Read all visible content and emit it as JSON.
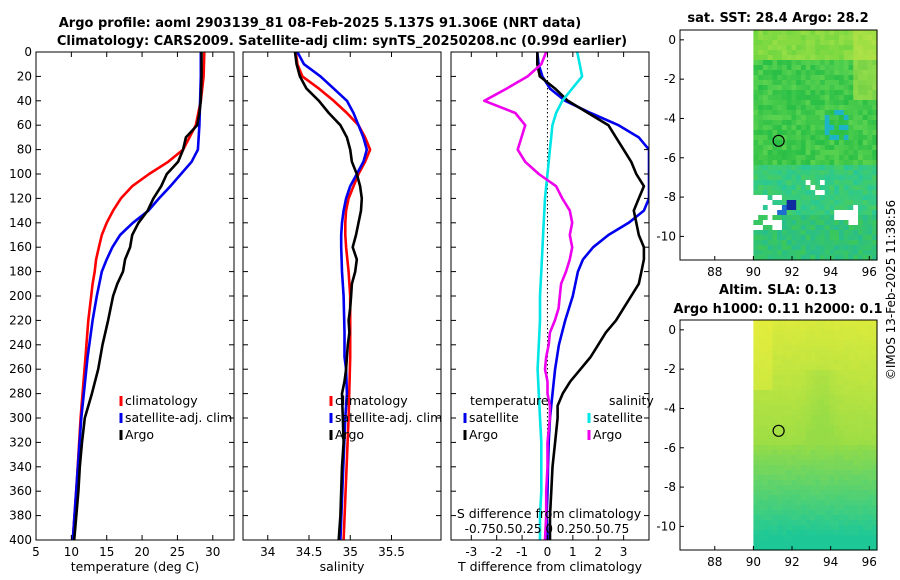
{
  "title": {
    "line1": "Argo profile: aoml 2903139_81 08-Feb-2025 5.137S 91.306E (NRT data)",
    "line2": "Climatology: CARS2009. Satellite-adj clim: synTS_20250208.nc (0.99d earlier)"
  },
  "colors": {
    "climatology": "#ff0000",
    "satellite": "#0000ee",
    "argo": "#000000",
    "s_satellite": "#00e5e5",
    "s_argo": "#ee00ee"
  },
  "chart_data": [
    {
      "type": "line",
      "name": "temperature-profile",
      "xlabel": "temperature (deg C)",
      "xlim": [
        5,
        33
      ],
      "xticks": [
        5,
        10,
        15,
        20,
        25,
        30
      ],
      "ylim": [
        0,
        400
      ],
      "yticks": [
        0,
        20,
        40,
        60,
        80,
        100,
        120,
        140,
        160,
        180,
        200,
        220,
        240,
        260,
        280,
        300,
        320,
        340,
        360,
        380,
        400
      ],
      "legend": [
        "climatology",
        "satellite-adj. clim",
        "Argo"
      ],
      "series": [
        {
          "name": "climatology",
          "color": "#ff0000",
          "depth": [
            0,
            20,
            40,
            60,
            80,
            90,
            100,
            110,
            120,
            130,
            140,
            150,
            160,
            170,
            180,
            190,
            200,
            220,
            250,
            300,
            350,
            400
          ],
          "values": [
            28.8,
            28.7,
            28.3,
            27.6,
            25.8,
            23.7,
            21.0,
            18.6,
            17.0,
            15.9,
            15.0,
            14.3,
            13.9,
            13.5,
            13.3,
            13.0,
            12.8,
            12.4,
            12.0,
            11.3,
            10.8,
            10.2
          ]
        },
        {
          "name": "satellite-adj. clim",
          "color": "#0000ee",
          "depth": [
            0,
            20,
            40,
            60,
            80,
            90,
            100,
            110,
            120,
            130,
            140,
            150,
            160,
            170,
            180,
            200,
            220,
            250,
            300,
            350,
            400
          ],
          "values": [
            28.3,
            28.3,
            28.2,
            28.1,
            27.9,
            27.0,
            25.5,
            24.0,
            22.4,
            20.9,
            18.7,
            16.9,
            15.8,
            15.0,
            14.3,
            13.6,
            13.0,
            12.3,
            11.4,
            10.8,
            10.2
          ]
        },
        {
          "name": "Argo",
          "color": "#000000",
          "depth": [
            0,
            20,
            40,
            50,
            60,
            70,
            80,
            90,
            95,
            100,
            110,
            120,
            130,
            140,
            150,
            160,
            170,
            180,
            190,
            200,
            220,
            240,
            260,
            280,
            300,
            320,
            340,
            360,
            380,
            400
          ],
          "values": [
            28.4,
            28.4,
            28.3,
            28.1,
            27.8,
            26.2,
            25.8,
            25.1,
            24.3,
            23.5,
            22.7,
            21.6,
            20.8,
            19.5,
            18.6,
            18.3,
            17.6,
            17.3,
            16.5,
            15.9,
            15.2,
            14.4,
            13.8,
            12.9,
            11.9,
            11.5,
            11.2,
            11.0,
            10.7,
            10.4
          ]
        }
      ]
    },
    {
      "type": "line",
      "name": "salinity-profile",
      "xlabel": "salinity",
      "xlim": [
        33.7,
        36.1
      ],
      "xticks": [
        34,
        34.5,
        35,
        35.5
      ],
      "xtick_labels": [
        "34",
        "34.5",
        "35",
        "35.5"
      ],
      "ylim": [
        0,
        400
      ],
      "legend": [
        "climatology",
        "satellite-adj. clim",
        "Argo"
      ],
      "series": [
        {
          "name": "climatology",
          "color": "#ff0000",
          "depth": [
            0,
            10,
            20,
            30,
            40,
            50,
            60,
            70,
            80,
            90,
            100,
            110,
            120,
            130,
            140,
            150,
            160,
            180,
            200,
            250,
            300,
            350,
            400
          ],
          "values": [
            34.34,
            34.36,
            34.42,
            34.62,
            34.8,
            34.96,
            35.1,
            35.18,
            35.24,
            35.18,
            35.1,
            35.04,
            34.98,
            34.95,
            34.94,
            34.94,
            34.95,
            34.98,
            35.0,
            35.0,
            34.98,
            34.95,
            34.92
          ]
        },
        {
          "name": "satellite-adj. clim",
          "color": "#0000ee",
          "depth": [
            0,
            10,
            20,
            30,
            40,
            50,
            60,
            70,
            80,
            90,
            100,
            110,
            120,
            130,
            140,
            150,
            160,
            180,
            200,
            230,
            250,
            260,
            280,
            300,
            350,
            400
          ],
          "values": [
            34.36,
            34.44,
            34.64,
            34.8,
            34.96,
            35.04,
            35.1,
            35.16,
            35.2,
            35.16,
            35.08,
            35.0,
            34.95,
            34.92,
            34.9,
            34.89,
            34.89,
            34.9,
            34.92,
            34.93,
            34.93,
            34.95,
            34.96,
            34.94,
            34.91,
            34.88
          ]
        },
        {
          "name": "Argo",
          "color": "#000000",
          "depth": [
            0,
            10,
            20,
            30,
            40,
            50,
            60,
            70,
            80,
            90,
            100,
            110,
            120,
            130,
            140,
            150,
            160,
            170,
            180,
            190,
            200,
            210,
            220,
            230,
            240,
            250,
            260,
            270,
            280,
            300,
            320,
            340,
            360,
            380,
            400
          ],
          "values": [
            34.33,
            34.35,
            34.39,
            34.47,
            34.62,
            34.74,
            34.88,
            34.96,
            35.0,
            35.02,
            35.08,
            35.12,
            35.14,
            35.13,
            35.1,
            35.07,
            35.03,
            35.08,
            35.06,
            35.02,
            35.01,
            35.0,
            34.98,
            34.99,
            34.97,
            34.96,
            34.95,
            34.93,
            34.9,
            34.91,
            34.92,
            34.9,
            34.89,
            34.88,
            34.86
          ]
        }
      ]
    },
    {
      "type": "line",
      "name": "difference-profile",
      "xlabel": "T difference from climatology",
      "xlim": [
        -3.8,
        4.0
      ],
      "xticks": [
        -3,
        -2,
        -1,
        0,
        1,
        2,
        3
      ],
      "top_label": "S difference from climatology",
      "top_ticks": "-0.750.50.25  0  0.250.50.75",
      "ylim": [
        0,
        400
      ],
      "legend_left_title": "temperature",
      "legend_right_title": "salinity",
      "legend_left": [
        "satellite",
        "Argo"
      ],
      "legend_right": [
        "satellite",
        "Argo"
      ],
      "zero_line": "dotted",
      "series": [
        {
          "name": "T satellite",
          "color": "#0000ee",
          "depth": [
            0,
            10,
            20,
            30,
            40,
            50,
            60,
            70,
            80,
            90,
            100,
            110,
            120,
            130,
            140,
            150,
            160,
            170,
            180,
            200,
            220,
            240,
            260,
            280,
            300,
            320,
            340,
            360,
            380,
            400
          ],
          "values": [
            -0.4,
            -0.35,
            -0.2,
            0.1,
            0.7,
            1.7,
            2.8,
            3.6,
            4.0,
            4.0,
            4.0,
            4.0,
            4.0,
            3.8,
            3.2,
            2.4,
            1.8,
            1.4,
            1.2,
            1.0,
            0.7,
            0.45,
            0.3,
            0.2,
            0.1,
            0.05,
            0.02,
            0.0,
            -0.03,
            0.0
          ]
        },
        {
          "name": "T Argo",
          "color": "#000000",
          "depth": [
            0,
            10,
            20,
            30,
            40,
            50,
            60,
            70,
            80,
            90,
            100,
            110,
            120,
            130,
            140,
            150,
            160,
            170,
            180,
            190,
            200,
            210,
            220,
            230,
            240,
            250,
            260,
            270,
            280,
            290,
            300,
            320,
            340,
            360,
            380,
            400
          ],
          "values": [
            -0.4,
            -0.4,
            -0.3,
            0.3,
            0.8,
            1.6,
            2.4,
            2.7,
            3.0,
            3.3,
            3.5,
            3.8,
            3.6,
            3.4,
            3.5,
            3.6,
            3.8,
            3.8,
            3.7,
            3.6,
            3.3,
            3.0,
            2.7,
            2.3,
            2.0,
            1.7,
            1.3,
            0.9,
            0.6,
            0.4,
            0.4,
            0.3,
            0.2,
            0.15,
            0.1,
            0.1
          ]
        },
        {
          "name": "S satellite",
          "color": "#00e5e5",
          "depth": [
            0,
            10,
            20,
            30,
            40,
            50,
            60,
            70,
            80,
            90,
            100,
            110,
            120,
            140,
            160,
            180,
            200,
            220,
            240,
            260,
            280,
            300,
            320,
            340,
            360,
            380,
            400
          ],
          "values": [
            0.24,
            0.26,
            0.28,
            0.2,
            0.12,
            0.07,
            0.04,
            0.03,
            0.02,
            0.01,
            0.0,
            -0.01,
            -0.02,
            -0.03,
            -0.04,
            -0.05,
            -0.06,
            -0.06,
            -0.07,
            -0.08,
            -0.07,
            -0.06,
            -0.05,
            -0.05,
            -0.05,
            -0.06,
            -0.06
          ]
        },
        {
          "name": "S Argo",
          "color": "#ee00ee",
          "depth": [
            0,
            10,
            20,
            30,
            40,
            50,
            60,
            70,
            80,
            90,
            100,
            110,
            120,
            130,
            140,
            150,
            160,
            170,
            180,
            190,
            200,
            210,
            220,
            230,
            240,
            250,
            260,
            270,
            280,
            290,
            300,
            320,
            340,
            360,
            380,
            400
          ],
          "values": [
            -0.01,
            -0.05,
            -0.16,
            -0.33,
            -0.51,
            -0.26,
            -0.18,
            -0.21,
            -0.24,
            -0.18,
            -0.07,
            0.07,
            0.12,
            0.18,
            0.2,
            0.18,
            0.2,
            0.18,
            0.15,
            0.11,
            0.1,
            0.09,
            0.06,
            0.02,
            0.01,
            -0.01,
            -0.02,
            0.0,
            0.0,
            0.02,
            0.02,
            0.0,
            0.0,
            -0.01,
            -0.01,
            -0.02
          ]
        }
      ]
    },
    {
      "type": "heatmap",
      "name": "sst-map",
      "title": "sat. SST: 28.4 Argo: 28.2",
      "xlim": [
        86.2,
        96.4
      ],
      "ylim": [
        -11.2,
        0.5
      ],
      "xticks": [
        88,
        90,
        92,
        94,
        96
      ],
      "yticks": [
        0,
        -2,
        -4,
        -6,
        -8,
        -10
      ],
      "data_xmin": 90,
      "marker": {
        "lon": 91.306,
        "lat": -5.137
      }
    },
    {
      "type": "heatmap",
      "name": "sla-map",
      "title": "Altim. SLA: 0.13",
      "subtitle": "Argo h1000: 0.11 h2000: 0.1",
      "xlim": [
        86.2,
        96.4
      ],
      "ylim": [
        -11.2,
        0.5
      ],
      "xticks": [
        88,
        90,
        92,
        94,
        96
      ],
      "yticks": [
        0,
        -2,
        -4,
        -6,
        -8,
        -10
      ],
      "data_xmin": 90,
      "marker": {
        "lon": 91.306,
        "lat": -5.137
      }
    }
  ],
  "credit": "©IMOS 13-Feb-2025 11:38:56"
}
